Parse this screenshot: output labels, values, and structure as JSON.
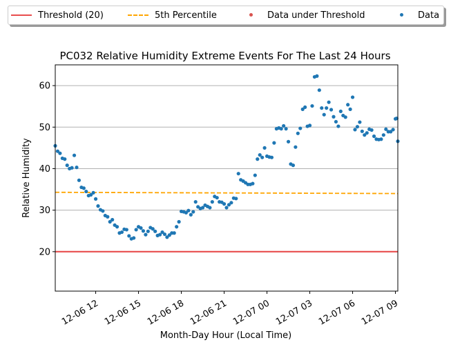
{
  "chart_data": {
    "type": "scatter",
    "title": "PC032 Relative Humidity Extreme Events For The Last 24 Hours",
    "xlabel": "Month-Day Hour (Local Time)",
    "ylabel": "Relative Humidity",
    "x_tick_labels": [
      "12-06 12",
      "12-06 15",
      "12-06 18",
      "12-06 21",
      "12-07 00",
      "12-07 03",
      "12-07 06",
      "12-07 09"
    ],
    "y_ticks": [
      20,
      30,
      40,
      50,
      60
    ],
    "xlim": [
      "12-06 09:10",
      "12-07 09:10"
    ],
    "ylim": [
      10.5,
      65
    ],
    "grid": "horizontal",
    "legend_position": "top, above plot, 4 columns",
    "legend": [
      {
        "label": "Threshold (20)",
        "kind": "line",
        "color": "#e84c4c"
      },
      {
        "label": "5th Percentile",
        "kind": "dashed-line",
        "color": "#ffa500"
      },
      {
        "label": "Data under Threshold",
        "kind": "marker",
        "color": "#d9534f"
      },
      {
        "label": "Data",
        "kind": "marker",
        "color": "#1f77b4"
      }
    ],
    "threshold": {
      "label": "Threshold (20)",
      "value": 20,
      "color": "#e84c4c"
    },
    "percentile": {
      "label": "5th Percentile",
      "start": [
        "12-06 09:10",
        34.3
      ],
      "end": [
        "12-07 09:10",
        34.0
      ],
      "color": "#ffa500"
    },
    "series": [
      {
        "name": "Data",
        "color": "#1f77b4",
        "points": [
          [
            "12-06 09:10",
            45.5
          ],
          [
            "12-06 09:20",
            44.2
          ],
          [
            "12-06 09:30",
            43.7
          ],
          [
            "12-06 09:40",
            42.5
          ],
          [
            "12-06 09:50",
            42.3
          ],
          [
            "12-06 10:00",
            40.8
          ],
          [
            "12-06 10:10",
            40.0
          ],
          [
            "12-06 10:20",
            40.2
          ],
          [
            "12-06 10:30",
            43.2
          ],
          [
            "12-06 10:40",
            40.3
          ],
          [
            "12-06 10:50",
            37.2
          ],
          [
            "12-06 11:00",
            35.5
          ],
          [
            "12-06 11:10",
            35.3
          ],
          [
            "12-06 11:20",
            34.5
          ],
          [
            "12-06 11:30",
            33.5
          ],
          [
            "12-06 11:40",
            33.7
          ],
          [
            "12-06 11:50",
            34.2
          ],
          [
            "12-06 12:00",
            32.7
          ],
          [
            "12-06 12:10",
            31.0
          ],
          [
            "12-06 12:20",
            30.1
          ],
          [
            "12-06 12:30",
            29.8
          ],
          [
            "12-06 12:40",
            28.7
          ],
          [
            "12-06 12:50",
            28.4
          ],
          [
            "12-06 13:00",
            27.2
          ],
          [
            "12-06 13:10",
            27.7
          ],
          [
            "12-06 13:20",
            26.4
          ],
          [
            "12-06 13:30",
            26.0
          ],
          [
            "12-06 13:40",
            24.5
          ],
          [
            "12-06 13:50",
            24.7
          ],
          [
            "12-06 14:00",
            25.4
          ],
          [
            "12-06 14:10",
            25.3
          ],
          [
            "12-06 14:20",
            23.8
          ],
          [
            "12-06 14:30",
            23.1
          ],
          [
            "12-06 14:40",
            23.3
          ],
          [
            "12-06 14:50",
            25.3
          ],
          [
            "12-06 15:00",
            26.0
          ],
          [
            "12-06 15:10",
            25.7
          ],
          [
            "12-06 15:20",
            25.0
          ],
          [
            "12-06 15:30",
            24.1
          ],
          [
            "12-06 15:40",
            24.9
          ],
          [
            "12-06 15:50",
            25.8
          ],
          [
            "12-06 16:00",
            25.5
          ],
          [
            "12-06 16:10",
            24.9
          ],
          [
            "12-06 16:20",
            23.9
          ],
          [
            "12-06 16:30",
            24.1
          ],
          [
            "12-06 16:40",
            24.7
          ],
          [
            "12-06 16:50",
            24.2
          ],
          [
            "12-06 17:00",
            23.5
          ],
          [
            "12-06 17:10",
            24.0
          ],
          [
            "12-06 17:20",
            24.5
          ],
          [
            "12-06 17:30",
            24.5
          ],
          [
            "12-06 17:40",
            26.0
          ],
          [
            "12-06 17:50",
            27.2
          ],
          [
            "12-06 18:00",
            29.7
          ],
          [
            "12-06 18:10",
            29.6
          ],
          [
            "12-06 18:20",
            29.4
          ],
          [
            "12-06 18:30",
            29.9
          ],
          [
            "12-06 18:40",
            28.9
          ],
          [
            "12-06 18:50",
            29.6
          ],
          [
            "12-06 19:00",
            32.0
          ],
          [
            "12-06 19:10",
            30.8
          ],
          [
            "12-06 19:20",
            30.4
          ],
          [
            "12-06 19:30",
            30.6
          ],
          [
            "12-06 19:40",
            31.2
          ],
          [
            "12-06 19:50",
            30.9
          ],
          [
            "12-06 20:00",
            30.6
          ],
          [
            "12-06 20:10",
            32.0
          ],
          [
            "12-06 20:20",
            33.3
          ],
          [
            "12-06 20:30",
            33.0
          ],
          [
            "12-06 20:40",
            32.0
          ],
          [
            "12-06 20:50",
            31.9
          ],
          [
            "12-06 21:00",
            31.5
          ],
          [
            "12-06 21:10",
            30.6
          ],
          [
            "12-06 21:20",
            31.3
          ],
          [
            "12-06 21:30",
            31.8
          ],
          [
            "12-06 21:40",
            32.9
          ],
          [
            "12-06 21:50",
            32.8
          ],
          [
            "12-06 22:00",
            38.8
          ],
          [
            "12-06 22:10",
            37.3
          ],
          [
            "12-06 22:20",
            37.0
          ],
          [
            "12-06 22:30",
            36.6
          ],
          [
            "12-06 22:40",
            36.2
          ],
          [
            "12-06 22:50",
            36.2
          ],
          [
            "12-06 23:00",
            36.4
          ],
          [
            "12-06 23:10",
            38.4
          ],
          [
            "12-06 23:20",
            42.3
          ],
          [
            "12-06 23:30",
            43.3
          ],
          [
            "12-06 23:40",
            42.7
          ],
          [
            "12-06 23:50",
            45.0
          ],
          [
            "12-07 00:00",
            43.0
          ],
          [
            "12-07 00:10",
            42.8
          ],
          [
            "12-07 00:20",
            42.7
          ],
          [
            "12-07 00:30",
            46.2
          ],
          [
            "12-07 00:40",
            49.6
          ],
          [
            "12-07 00:50",
            49.8
          ],
          [
            "12-07 01:00",
            49.6
          ],
          [
            "12-07 01:10",
            50.3
          ],
          [
            "12-07 01:20",
            49.6
          ],
          [
            "12-07 01:30",
            46.5
          ],
          [
            "12-07 01:40",
            41.1
          ],
          [
            "12-07 01:50",
            40.8
          ],
          [
            "12-07 02:00",
            45.2
          ],
          [
            "12-07 02:10",
            48.5
          ],
          [
            "12-07 02:20",
            49.7
          ],
          [
            "12-07 02:30",
            54.3
          ],
          [
            "12-07 02:40",
            54.8
          ],
          [
            "12-07 02:50",
            50.2
          ],
          [
            "12-07 03:00",
            50.4
          ],
          [
            "12-07 03:10",
            55.1
          ],
          [
            "12-07 03:20",
            62.1
          ],
          [
            "12-07 03:30",
            62.3
          ],
          [
            "12-07 03:40",
            58.9
          ],
          [
            "12-07 03:50",
            54.6
          ],
          [
            "12-07 04:00",
            53.0
          ],
          [
            "12-07 04:10",
            54.6
          ],
          [
            "12-07 04:20",
            56.0
          ],
          [
            "12-07 04:30",
            54.2
          ],
          [
            "12-07 04:40",
            52.5
          ],
          [
            "12-07 04:50",
            51.3
          ],
          [
            "12-07 05:00",
            50.2
          ],
          [
            "12-07 05:10",
            53.8
          ],
          [
            "12-07 05:20",
            52.8
          ],
          [
            "12-07 05:30",
            52.4
          ],
          [
            "12-07 05:40",
            55.4
          ],
          [
            "12-07 05:50",
            54.3
          ],
          [
            "12-07 06:00",
            57.2
          ],
          [
            "12-07 06:10",
            49.4
          ],
          [
            "12-07 06:20",
            50.1
          ],
          [
            "12-07 06:30",
            51.2
          ],
          [
            "12-07 06:40",
            49.0
          ],
          [
            "12-07 06:50",
            48.1
          ],
          [
            "12-07 07:00",
            48.6
          ],
          [
            "12-07 07:10",
            49.5
          ],
          [
            "12-07 07:20",
            49.3
          ],
          [
            "12-07 07:30",
            47.8
          ],
          [
            "12-07 07:40",
            47.1
          ],
          [
            "12-07 07:50",
            47.0
          ],
          [
            "12-07 08:00",
            47.1
          ],
          [
            "12-07 08:10",
            48.1
          ],
          [
            "12-07 08:20",
            49.5
          ],
          [
            "12-07 08:30",
            48.9
          ],
          [
            "12-07 08:40",
            48.9
          ],
          [
            "12-07 08:50",
            49.4
          ],
          [
            "12-07 09:00",
            52.0
          ],
          [
            "12-07 09:05",
            52.1
          ],
          [
            "12-07 09:10",
            46.6
          ]
        ]
      },
      {
        "name": "Data under Threshold",
        "color": "#d9534f",
        "points": []
      }
    ]
  }
}
